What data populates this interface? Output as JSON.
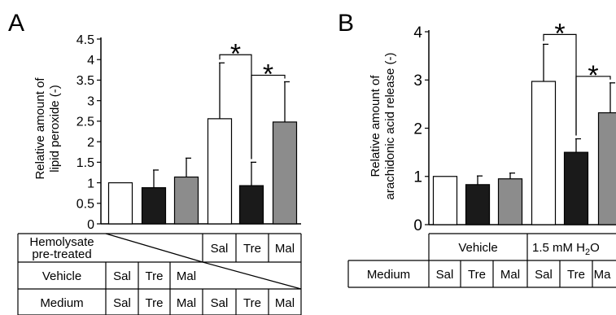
{
  "chart_data": [
    {
      "panel": "A",
      "type": "bar",
      "ylabel": "Relative amount of lipid peroxide (-)",
      "ylabel_lines": [
        "Relative amount of",
        "lipid peroxide (-)"
      ],
      "ylim": [
        0,
        4.5
      ],
      "yticks": [
        "0",
        "0.5",
        "1",
        "1.5",
        "2",
        "2.5",
        "3",
        "3.5",
        "4",
        "4.5"
      ],
      "categories": [
        "Sal",
        "Tre",
        "Mal",
        "Sal",
        "Tre",
        "Mal"
      ],
      "values": [
        1.0,
        0.88,
        1.14,
        2.56,
        0.93,
        2.48
      ],
      "errors": [
        0.0,
        0.43,
        0.46,
        1.36,
        0.57,
        0.98
      ],
      "bar_colors": [
        "#ffffff",
        "#1a1a1a",
        "#8c8c8c",
        "#ffffff",
        "#1a1a1a",
        "#8c8c8c"
      ],
      "significance": [
        {
          "between": [
            3,
            4
          ],
          "label": "*"
        },
        {
          "between": [
            4,
            5
          ],
          "label": "*"
        }
      ],
      "table": {
        "rows": [
          {
            "label_lines": [
              "Hemolysate",
              "pre-treated"
            ],
            "cells": [
              "",
              "",
              "",
              "Sal",
              "Tre",
              "Mal"
            ]
          },
          {
            "label_lines": [
              "Vehicle"
            ],
            "cells": [
              "Sal",
              "Tre",
              "Mal",
              "",
              "",
              ""
            ]
          },
          {
            "label_lines": [
              "Medium"
            ],
            "cells": [
              "Sal",
              "Tre",
              "Mal",
              "Sal",
              "Tre",
              "Mal"
            ]
          }
        ]
      }
    },
    {
      "panel": "B",
      "type": "bar",
      "ylabel": "Relative amount of arachidonic acid release (-)",
      "ylabel_lines": [
        "Relative amount of",
        "arachidonic acid release (-)"
      ],
      "ylim": [
        0,
        4
      ],
      "yticks": [
        "0",
        "1",
        "2",
        "3",
        "4"
      ],
      "categories": [
        "Sal",
        "Tre",
        "Mal",
        "Sal",
        "Tre",
        "Mal"
      ],
      "values": [
        1.0,
        0.83,
        0.95,
        2.97,
        1.5,
        2.32
      ],
      "errors": [
        0.0,
        0.18,
        0.12,
        0.77,
        0.28,
        0.62
      ],
      "bar_colors": [
        "#ffffff",
        "#1a1a1a",
        "#8c8c8c",
        "#ffffff",
        "#1a1a1a",
        "#8c8c8c"
      ],
      "significance": [
        {
          "between": [
            3,
            4
          ],
          "label": "*"
        },
        {
          "between": [
            4,
            5
          ],
          "label": "*"
        }
      ],
      "table": {
        "groups": [
          {
            "label": "Vehicle",
            "span": 3
          },
          {
            "label": "1.5 mM H",
            "subscript": "2",
            "tail": "O",
            "span": 3
          }
        ],
        "medium_label": "Medium",
        "medium_cells": [
          "Sal",
          "Tre",
          "Mal",
          "Sal",
          "Tre",
          "Ma"
        ]
      }
    }
  ]
}
